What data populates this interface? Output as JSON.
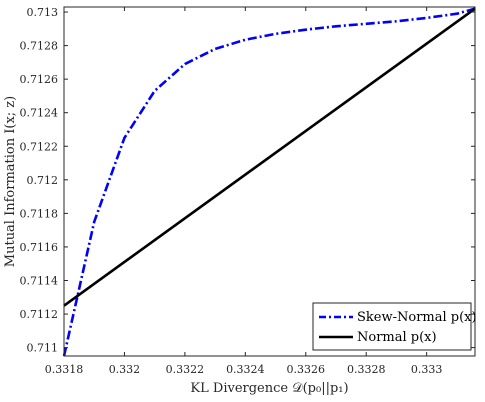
{
  "chart_data": {
    "type": "line",
    "xlabel": "KL Divergence 𝒟(p₀||p₁)",
    "ylabel": "Mutual Information I(x; z)",
    "xlim": [
      0.3318,
      0.33316
    ],
    "ylim": [
      0.71095,
      0.71303
    ],
    "xticks": [
      0.3318,
      0.332,
      0.3322,
      0.3324,
      0.3326,
      0.3328,
      0.333
    ],
    "xtick_labels": [
      "0.3318",
      "0.332",
      "0.3322",
      "0.3324",
      "0.3326",
      "0.3328",
      "0.333"
    ],
    "yticks": [
      0.711,
      0.7112,
      0.7114,
      0.7116,
      0.7118,
      0.712,
      0.7122,
      0.7124,
      0.7126,
      0.7128,
      0.713
    ],
    "ytick_labels": [
      "0.711",
      "0.7112",
      "0.7114",
      "0.7116",
      "0.7118",
      "0.712",
      "0.7122",
      "0.7124",
      "0.7126",
      "0.7128",
      "0.713"
    ],
    "grid": false,
    "legend_position": "bottom-right",
    "series": [
      {
        "name": "Skew-Normal p(x)",
        "color": "#0000ff",
        "style": "dash-dot",
        "x": [
          0.3318,
          0.3319,
          0.332,
          0.3321,
          0.3322,
          0.3323,
          0.3324,
          0.3325,
          0.3326,
          0.3327,
          0.3328,
          0.3329,
          0.333,
          0.3331,
          0.33316
        ],
        "y": [
          0.71095,
          0.71175,
          0.71225,
          0.71253,
          0.71269,
          0.71278,
          0.712835,
          0.71287,
          0.712895,
          0.712915,
          0.71293,
          0.712945,
          0.712965,
          0.71299,
          0.71302
        ]
      },
      {
        "name": "Normal p(x)",
        "color": "#000000",
        "style": "solid",
        "x": [
          0.3318,
          0.33316
        ],
        "y": [
          0.71125,
          0.71302
        ]
      }
    ]
  }
}
